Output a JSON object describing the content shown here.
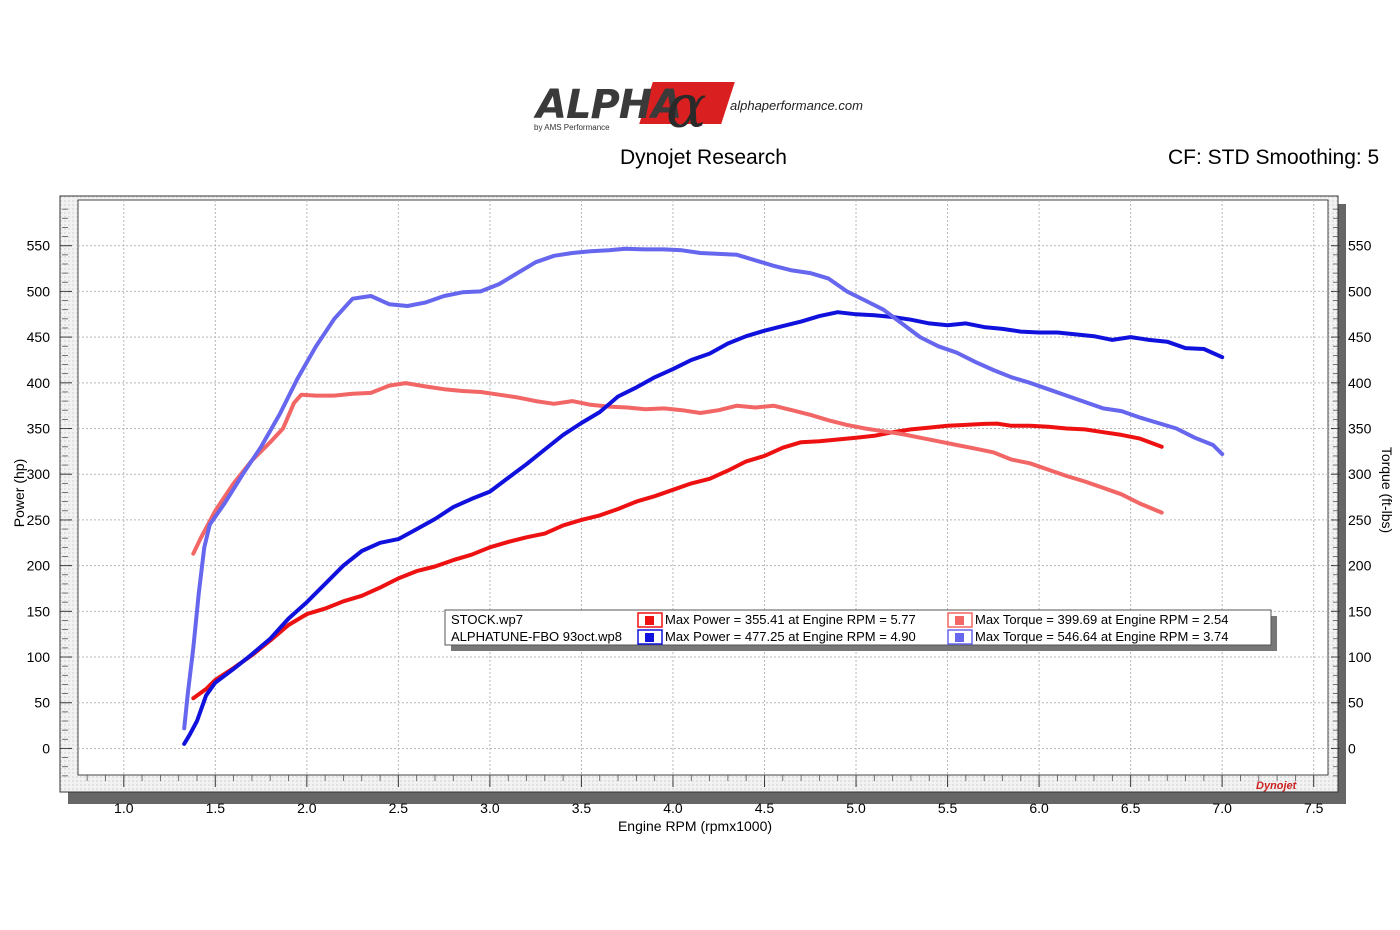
{
  "logo": {
    "brand_text": "ALPHA",
    "brand_symbol": "α",
    "tagline": "by AMS Performance",
    "url": "alphaperformance.com"
  },
  "header": {
    "title": "Dynojet Research",
    "right_info": "CF: STD Smoothing: 5"
  },
  "chart_data": {
    "type": "line",
    "title": "Dynojet Research",
    "xlabel": "Engine RPM (rpmx1000)",
    "ylabel_left": "Power (hp)",
    "ylabel_right": "Torque (ft-lbs)",
    "xlim": [
      0.75,
      7.6
    ],
    "ylim": [
      -40,
      600
    ],
    "x_ticks": [
      "1.0",
      "1.5",
      "2.0",
      "2.5",
      "3.0",
      "3.5",
      "4.0",
      "4.5",
      "5.0",
      "5.5",
      "6.0",
      "6.5",
      "7.0",
      "7.5"
    ],
    "y_ticks": [
      "0",
      "50",
      "100",
      "150",
      "200",
      "250",
      "300",
      "350",
      "400",
      "450",
      "500",
      "550"
    ],
    "grid": true,
    "watermark": "Dynojet",
    "colors": {
      "stock_power": "#ee1111",
      "stock_torque": "#f26666",
      "alpha_power": "#1111dd",
      "alpha_torque": "#6666ee"
    },
    "series": [
      {
        "name": "STOCK.wp7",
        "measure": "power",
        "color": "#ee1111",
        "points": [
          [
            1.38,
            55
          ],
          [
            1.45,
            65
          ],
          [
            1.5,
            75
          ],
          [
            1.6,
            88
          ],
          [
            1.7,
            102
          ],
          [
            1.8,
            118
          ],
          [
            1.9,
            135
          ],
          [
            2.0,
            147
          ],
          [
            2.1,
            153
          ],
          [
            2.2,
            161
          ],
          [
            2.3,
            167
          ],
          [
            2.4,
            176
          ],
          [
            2.5,
            186
          ],
          [
            2.6,
            194
          ],
          [
            2.7,
            199
          ],
          [
            2.8,
            206
          ],
          [
            2.9,
            212
          ],
          [
            3.0,
            220
          ],
          [
            3.1,
            226
          ],
          [
            3.2,
            231
          ],
          [
            3.3,
            235
          ],
          [
            3.4,
            244
          ],
          [
            3.5,
            250
          ],
          [
            3.6,
            255
          ],
          [
            3.7,
            262
          ],
          [
            3.8,
            270
          ],
          [
            3.9,
            276
          ],
          [
            4.0,
            283
          ],
          [
            4.1,
            290
          ],
          [
            4.2,
            295
          ],
          [
            4.3,
            304
          ],
          [
            4.4,
            314
          ],
          [
            4.5,
            320
          ],
          [
            4.6,
            329
          ],
          [
            4.7,
            335
          ],
          [
            4.8,
            336
          ],
          [
            4.9,
            338
          ],
          [
            5.0,
            340
          ],
          [
            5.1,
            342
          ],
          [
            5.2,
            346
          ],
          [
            5.3,
            349
          ],
          [
            5.4,
            351
          ],
          [
            5.5,
            353
          ],
          [
            5.6,
            354
          ],
          [
            5.7,
            355
          ],
          [
            5.77,
            355.4
          ],
          [
            5.85,
            353
          ],
          [
            5.95,
            353
          ],
          [
            6.05,
            352
          ],
          [
            6.15,
            350
          ],
          [
            6.25,
            349
          ],
          [
            6.35,
            346
          ],
          [
            6.45,
            343
          ],
          [
            6.55,
            339
          ],
          [
            6.67,
            330
          ]
        ]
      },
      {
        "name": "STOCK.wp7",
        "measure": "torque",
        "color": "#f26666",
        "points": [
          [
            1.38,
            213
          ],
          [
            1.42,
            230
          ],
          [
            1.5,
            260
          ],
          [
            1.6,
            290
          ],
          [
            1.7,
            315
          ],
          [
            1.8,
            335
          ],
          [
            1.87,
            350
          ],
          [
            1.93,
            378
          ],
          [
            1.97,
            387
          ],
          [
            2.05,
            386
          ],
          [
            2.15,
            386
          ],
          [
            2.25,
            388
          ],
          [
            2.35,
            389
          ],
          [
            2.45,
            397
          ],
          [
            2.54,
            399.7
          ],
          [
            2.65,
            396
          ],
          [
            2.75,
            393
          ],
          [
            2.85,
            391
          ],
          [
            2.95,
            390
          ],
          [
            3.05,
            387
          ],
          [
            3.15,
            384
          ],
          [
            3.25,
            380
          ],
          [
            3.35,
            377
          ],
          [
            3.45,
            380
          ],
          [
            3.55,
            376
          ],
          [
            3.65,
            374
          ],
          [
            3.75,
            373
          ],
          [
            3.85,
            371
          ],
          [
            3.95,
            372
          ],
          [
            4.05,
            370
          ],
          [
            4.15,
            367
          ],
          [
            4.25,
            370
          ],
          [
            4.35,
            375
          ],
          [
            4.45,
            373
          ],
          [
            4.55,
            375
          ],
          [
            4.65,
            370
          ],
          [
            4.75,
            365
          ],
          [
            4.85,
            359
          ],
          [
            4.95,
            354
          ],
          [
            5.05,
            350
          ],
          [
            5.15,
            347
          ],
          [
            5.25,
            344
          ],
          [
            5.35,
            340
          ],
          [
            5.45,
            336
          ],
          [
            5.55,
            332
          ],
          [
            5.65,
            328
          ],
          [
            5.75,
            324
          ],
          [
            5.85,
            316
          ],
          [
            5.95,
            312
          ],
          [
            6.05,
            305
          ],
          [
            6.15,
            298
          ],
          [
            6.25,
            292
          ],
          [
            6.35,
            285
          ],
          [
            6.45,
            278
          ],
          [
            6.55,
            268
          ],
          [
            6.67,
            258
          ]
        ]
      },
      {
        "name": "ALPHATUNE-FBO 93oct.wp8",
        "measure": "power",
        "color": "#1111dd",
        "points": [
          [
            1.33,
            5
          ],
          [
            1.36,
            15
          ],
          [
            1.4,
            30
          ],
          [
            1.45,
            58
          ],
          [
            1.5,
            72
          ],
          [
            1.6,
            87
          ],
          [
            1.7,
            103
          ],
          [
            1.8,
            120
          ],
          [
            1.9,
            142
          ],
          [
            2.0,
            160
          ],
          [
            2.1,
            180
          ],
          [
            2.2,
            200
          ],
          [
            2.3,
            216
          ],
          [
            2.4,
            225
          ],
          [
            2.5,
            229
          ],
          [
            2.6,
            240
          ],
          [
            2.7,
            251
          ],
          [
            2.8,
            264
          ],
          [
            2.9,
            273
          ],
          [
            3.0,
            281
          ],
          [
            3.1,
            296
          ],
          [
            3.2,
            311
          ],
          [
            3.3,
            327
          ],
          [
            3.4,
            343
          ],
          [
            3.5,
            356
          ],
          [
            3.6,
            368
          ],
          [
            3.7,
            385
          ],
          [
            3.8,
            395
          ],
          [
            3.9,
            406
          ],
          [
            4.0,
            415
          ],
          [
            4.1,
            425
          ],
          [
            4.2,
            432
          ],
          [
            4.3,
            443
          ],
          [
            4.4,
            451
          ],
          [
            4.5,
            457
          ],
          [
            4.6,
            462
          ],
          [
            4.7,
            467
          ],
          [
            4.8,
            473
          ],
          [
            4.9,
            477.3
          ],
          [
            5.0,
            475
          ],
          [
            5.1,
            474
          ],
          [
            5.2,
            472
          ],
          [
            5.3,
            469
          ],
          [
            5.4,
            465
          ],
          [
            5.5,
            463
          ],
          [
            5.6,
            465
          ],
          [
            5.7,
            461
          ],
          [
            5.8,
            459
          ],
          [
            5.9,
            456
          ],
          [
            6.0,
            455
          ],
          [
            6.1,
            455
          ],
          [
            6.2,
            453
          ],
          [
            6.3,
            451
          ],
          [
            6.4,
            447
          ],
          [
            6.5,
            450
          ],
          [
            6.6,
            447
          ],
          [
            6.7,
            445
          ],
          [
            6.8,
            438
          ],
          [
            6.9,
            437
          ],
          [
            7.0,
            428
          ]
        ]
      },
      {
        "name": "ALPHATUNE-FBO 93oct.wp8",
        "measure": "torque",
        "color": "#6666ee",
        "points": [
          [
            1.33,
            22
          ],
          [
            1.35,
            60
          ],
          [
            1.38,
            110
          ],
          [
            1.41,
            170
          ],
          [
            1.44,
            220
          ],
          [
            1.47,
            245
          ],
          [
            1.55,
            268
          ],
          [
            1.65,
            300
          ],
          [
            1.75,
            330
          ],
          [
            1.85,
            365
          ],
          [
            1.95,
            405
          ],
          [
            2.05,
            440
          ],
          [
            2.15,
            470
          ],
          [
            2.25,
            492
          ],
          [
            2.35,
            495
          ],
          [
            2.45,
            486
          ],
          [
            2.55,
            484
          ],
          [
            2.65,
            488
          ],
          [
            2.75,
            495
          ],
          [
            2.85,
            499
          ],
          [
            2.95,
            500
          ],
          [
            3.05,
            508
          ],
          [
            3.15,
            520
          ],
          [
            3.25,
            532
          ],
          [
            3.35,
            539
          ],
          [
            3.45,
            542
          ],
          [
            3.55,
            544
          ],
          [
            3.65,
            545
          ],
          [
            3.74,
            546.6
          ],
          [
            3.85,
            546
          ],
          [
            3.95,
            546
          ],
          [
            4.05,
            545
          ],
          [
            4.15,
            542
          ],
          [
            4.25,
            541
          ],
          [
            4.35,
            540
          ],
          [
            4.45,
            534
          ],
          [
            4.55,
            528
          ],
          [
            4.65,
            523
          ],
          [
            4.75,
            520
          ],
          [
            4.85,
            514
          ],
          [
            4.95,
            500
          ],
          [
            5.05,
            490
          ],
          [
            5.15,
            480
          ],
          [
            5.25,
            465
          ],
          [
            5.35,
            450
          ],
          [
            5.45,
            440
          ],
          [
            5.55,
            433
          ],
          [
            5.65,
            423
          ],
          [
            5.75,
            414
          ],
          [
            5.85,
            406
          ],
          [
            5.95,
            400
          ],
          [
            6.05,
            393
          ],
          [
            6.15,
            386
          ],
          [
            6.25,
            379
          ],
          [
            6.35,
            372
          ],
          [
            6.45,
            369
          ],
          [
            6.55,
            362
          ],
          [
            6.65,
            356
          ],
          [
            6.75,
            350
          ],
          [
            6.85,
            340
          ],
          [
            6.95,
            332
          ],
          [
            7.0,
            322
          ]
        ]
      }
    ],
    "legend": {
      "placement": "center-bottom",
      "rows": [
        {
          "name": "STOCK.wp7",
          "power_color": "#ee1111",
          "power_text": "Max Power = 355.41 at Engine RPM = 5.77",
          "torque_color": "#f26666",
          "torque_text": "Max Torque = 399.69 at Engine RPM = 2.54"
        },
        {
          "name": "ALPHATUNE-FBO 93oct.wp8",
          "power_color": "#1111dd",
          "power_text": "Max Power = 477.25 at Engine RPM = 4.90",
          "torque_color": "#6666ee",
          "torque_text": "Max Torque = 546.64 at Engine RPM = 3.74"
        }
      ]
    }
  }
}
